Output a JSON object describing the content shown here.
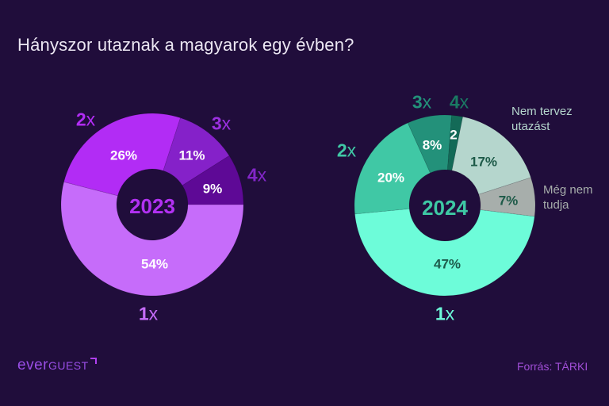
{
  "title": "Hányszor utaznak a magyarok egy évben?",
  "footer": {
    "logo": {
      "part1": "ever",
      "part2": "guest"
    },
    "source": "Forrás: TÁRKI"
  },
  "colors": {
    "background": "#200d3b",
    "title": "#ebe6f2",
    "source": "#a04ed6",
    "logo": "#9a4ee6"
  },
  "chart_data": [
    {
      "type": "pie",
      "donut": true,
      "title": "2023",
      "center_label": "2023",
      "center_color": "#b231f2",
      "start_angle": 90,
      "categories": [
        "1x",
        "2x",
        "3x",
        "4x"
      ],
      "values": [
        54,
        26,
        11,
        9
      ],
      "slices": [
        {
          "category": "1x",
          "num": "1",
          "suffix": "x",
          "value": 54,
          "display": "54%",
          "color": "#c66cfa",
          "text_color": "#ffffff",
          "label_color": "#c66cfa"
        },
        {
          "category": "2x",
          "num": "2",
          "suffix": "x",
          "value": 26,
          "display": "26%",
          "color": "#b22cf5",
          "text_color": "#ffffff",
          "label_color": "#b22cf5"
        },
        {
          "category": "3x",
          "num": "3",
          "suffix": "x",
          "value": 11,
          "display": "11%",
          "color": "#8521c9",
          "text_color": "#ffffff",
          "label_color": "#9b30e0"
        },
        {
          "category": "4x",
          "num": "4",
          "suffix": "x",
          "value": 9,
          "display": "9%",
          "color": "#5e0996",
          "text_color": "#ffffff",
          "label_color": "#8226c8"
        }
      ]
    },
    {
      "type": "pie",
      "donut": true,
      "title": "2024",
      "center_label": "2024",
      "center_color": "#3ec9a4",
      "start_angle": 97,
      "categories": [
        "1x",
        "2x",
        "3x",
        "4x",
        "Nem tervez utazást",
        "Még nem tudja"
      ],
      "values": [
        47,
        20,
        8,
        2,
        17,
        7
      ],
      "slices": [
        {
          "category": "1x",
          "num": "1",
          "suffix": "x",
          "value": 47,
          "display": "47%",
          "color": "#6dfcd9",
          "text_color": "#1d5c4c",
          "label_color": "#6dfcd9"
        },
        {
          "category": "2x",
          "num": "2",
          "suffix": "x",
          "value": 20,
          "display": "20%",
          "color": "#40c8a5",
          "text_color": "#ffffff",
          "label_color": "#40c8a5"
        },
        {
          "category": "3x",
          "num": "3",
          "suffix": "x",
          "value": 8,
          "display": "8%",
          "color": "#23917a",
          "text_color": "#ffffff",
          "label_color": "#23917a"
        },
        {
          "category": "4x",
          "num": "4",
          "suffix": "x",
          "value": 2,
          "display": "2",
          "color": "#136a57",
          "text_color": "#ffffff",
          "label_color": "#1a7a63"
        },
        {
          "category": "Nem tervez utazást",
          "line1": "Nem tervez",
          "line2": "utazást",
          "value": 17,
          "display": "17%",
          "color": "#b5d6cd",
          "text_color": "#1d5a48",
          "label_color": "#b5d6cd"
        },
        {
          "category": "Még nem tudja",
          "line1": "Még nem",
          "line2": "tudja",
          "value": 7,
          "display": "7%",
          "color": "#a7aeab",
          "text_color": "#1d5a48",
          "label_color": "#a7aeab"
        }
      ]
    }
  ]
}
